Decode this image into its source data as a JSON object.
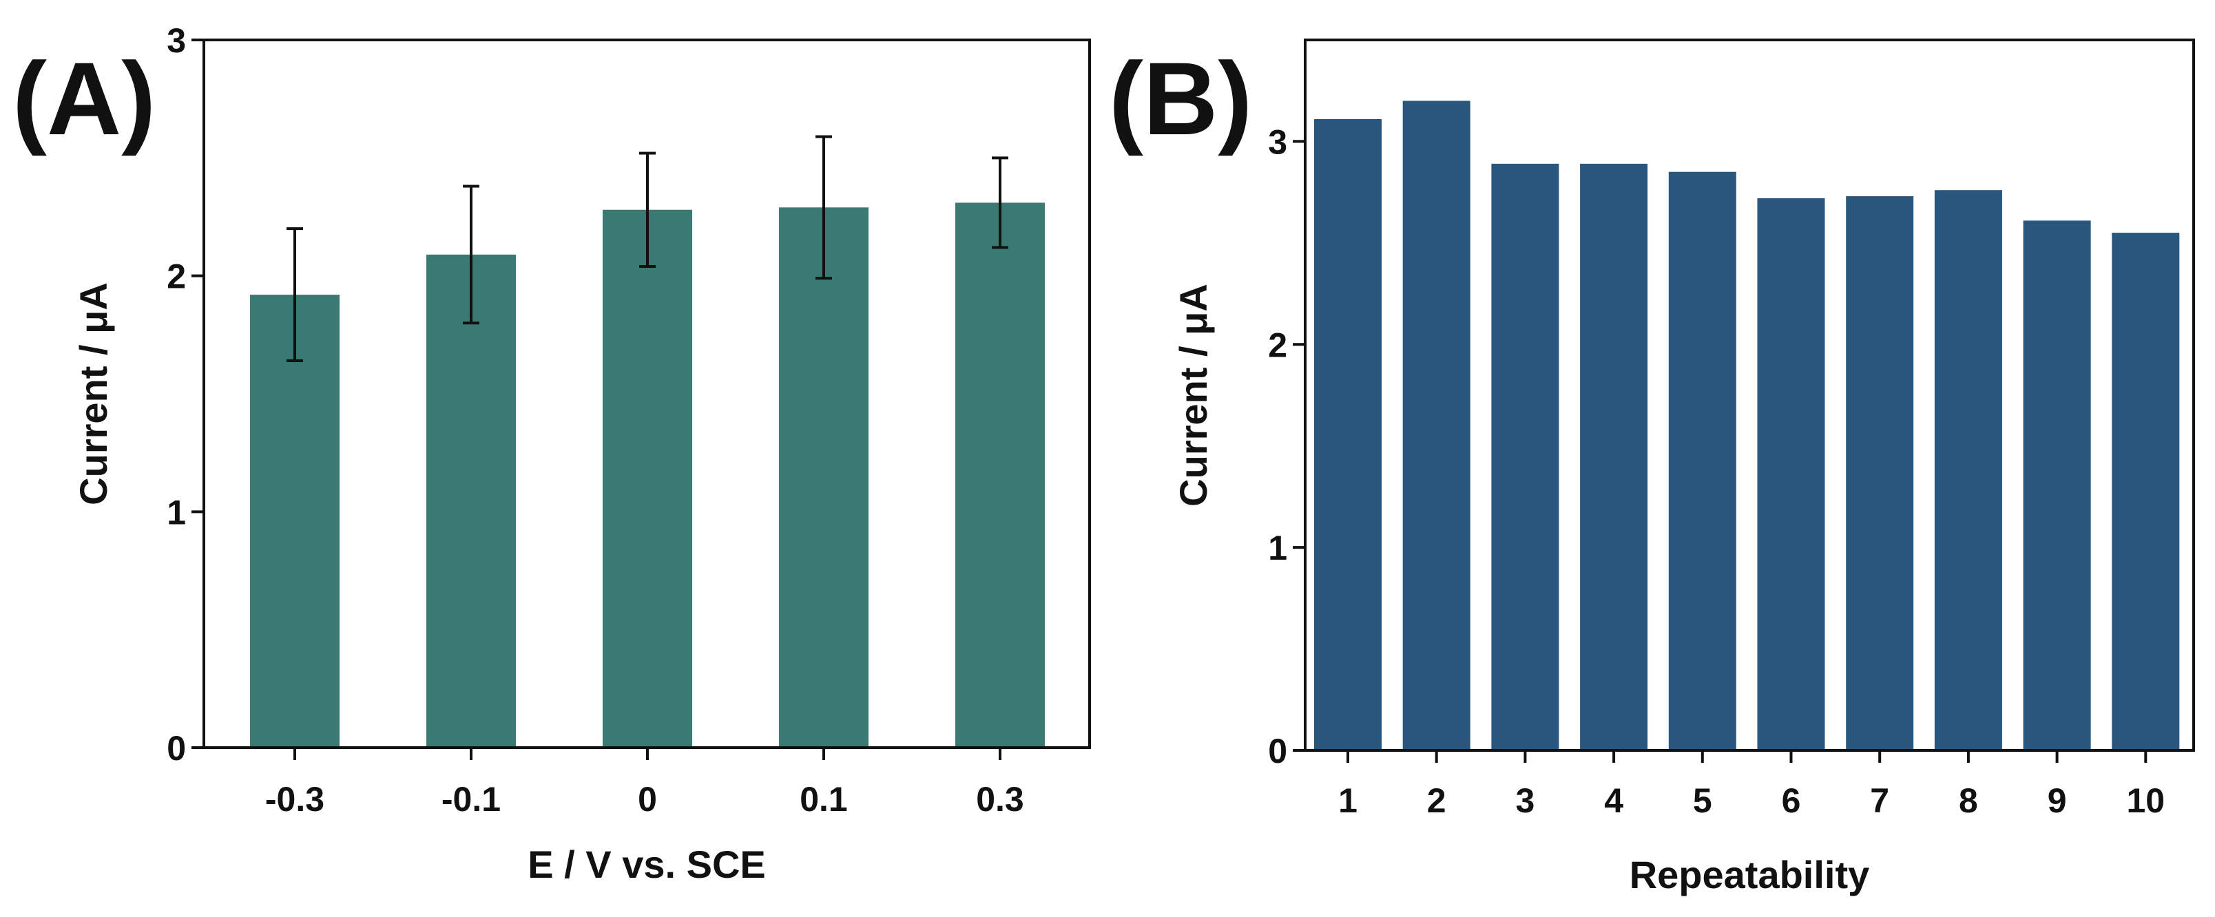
{
  "chart_data": [
    {
      "type": "bar",
      "panel_label": "(A)",
      "categories": [
        "-0.3",
        "-0.1",
        "0",
        "0.1",
        "0.3"
      ],
      "values": [
        1.92,
        2.09,
        2.28,
        2.29,
        2.31
      ],
      "error": [
        0.28,
        0.29,
        0.24,
        0.3,
        0.19
      ],
      "color": "#3a7a72",
      "xlabel": "E / V vs. SCE",
      "ylabel": "Current / μA",
      "ylim": [
        0,
        3
      ],
      "yticks": [
        "0",
        "1",
        "2",
        "3"
      ]
    },
    {
      "type": "bar",
      "panel_label": "(B)",
      "categories": [
        "1",
        "2",
        "3",
        "4",
        "5",
        "6",
        "7",
        "8",
        "9",
        "10"
      ],
      "values": [
        3.11,
        3.2,
        2.89,
        2.89,
        2.85,
        2.72,
        2.73,
        2.76,
        2.61,
        2.55
      ],
      "color": "#28567d",
      "xlabel": "Repeatability",
      "ylabel": "Current / μA",
      "ylim": [
        0,
        3.5
      ],
      "yticks": [
        "0",
        "1",
        "2",
        "3"
      ]
    }
  ]
}
